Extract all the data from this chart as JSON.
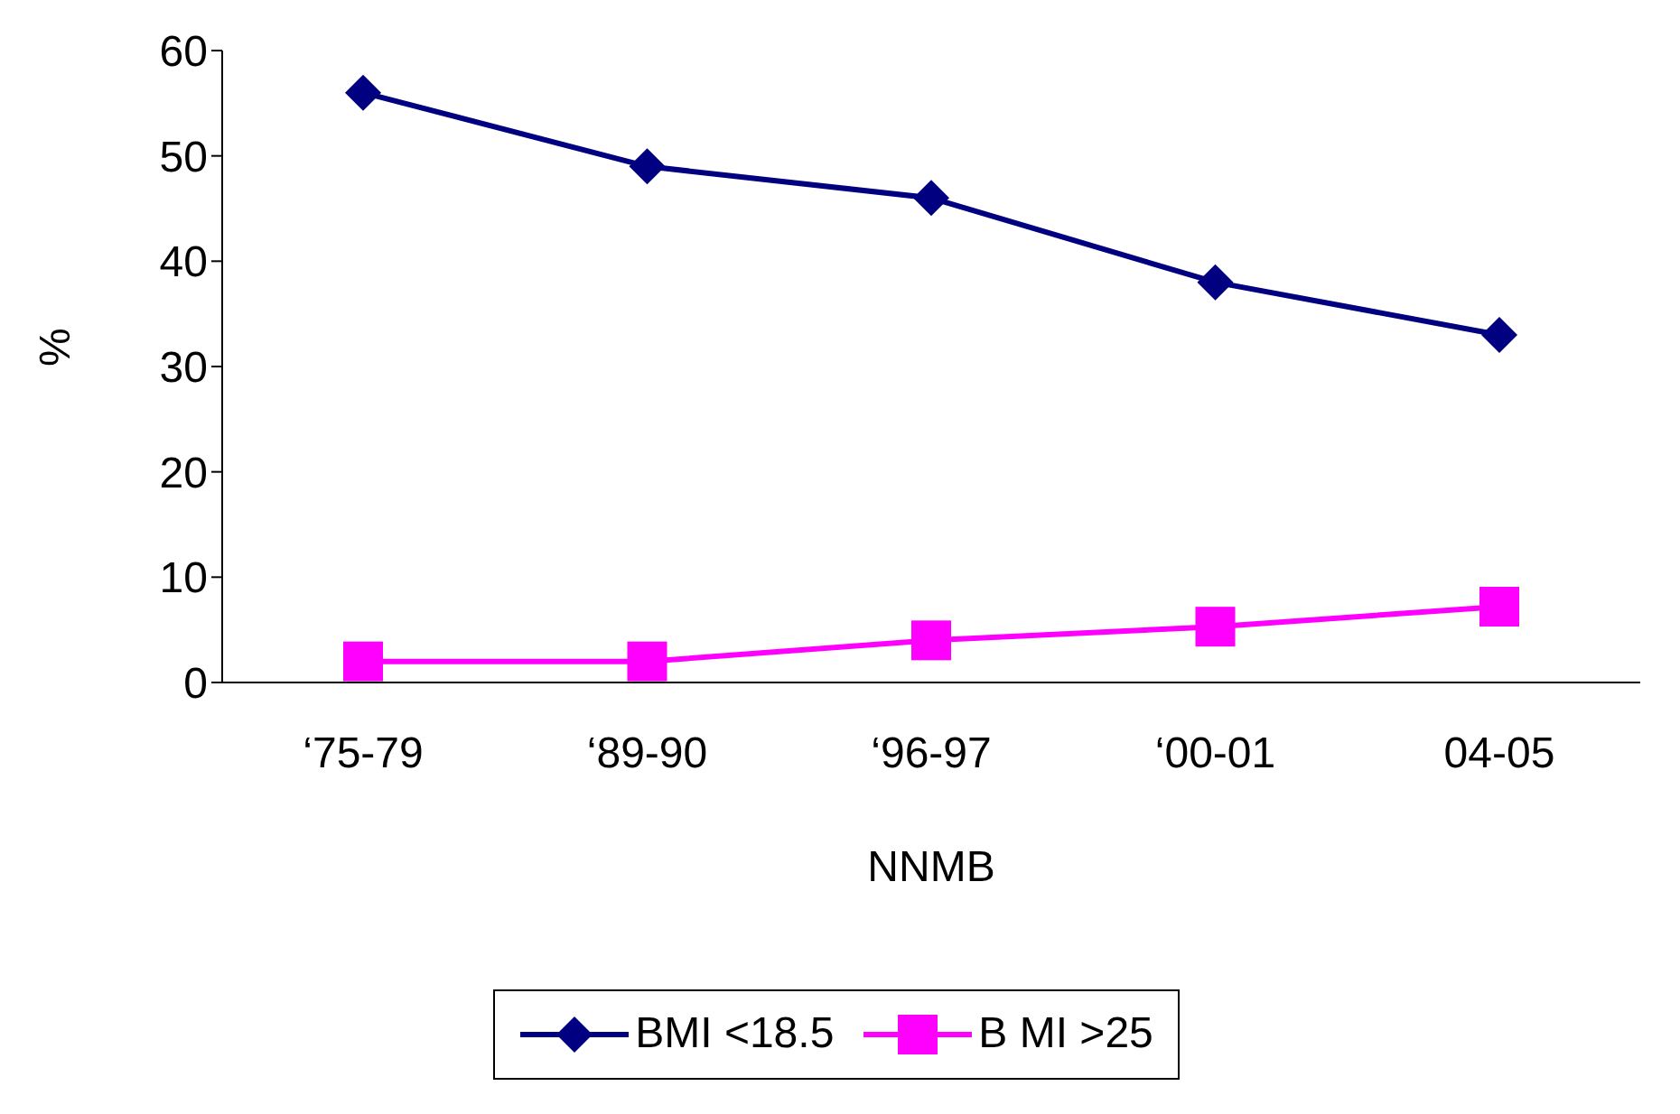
{
  "chart_data": {
    "type": "line",
    "ylabel": "%",
    "xlabel": "NNMB",
    "categories": [
      "‘75-79",
      "‘89-90",
      "‘96-97",
      "‘00-01",
      "04-05"
    ],
    "series": [
      {
        "name": "BMI <18.5",
        "color": "#000080",
        "marker": "diamond",
        "values": [
          56,
          49,
          46,
          38,
          33
        ]
      },
      {
        "name": "B MI >25",
        "color": "#ff00ff",
        "marker": "square",
        "values": [
          2,
          2,
          4,
          5.3,
          7.2
        ]
      }
    ],
    "ylim": [
      0,
      60
    ],
    "yticks": [
      0,
      10,
      20,
      30,
      40,
      50,
      60
    ],
    "grid": false,
    "legend": "bottom"
  }
}
